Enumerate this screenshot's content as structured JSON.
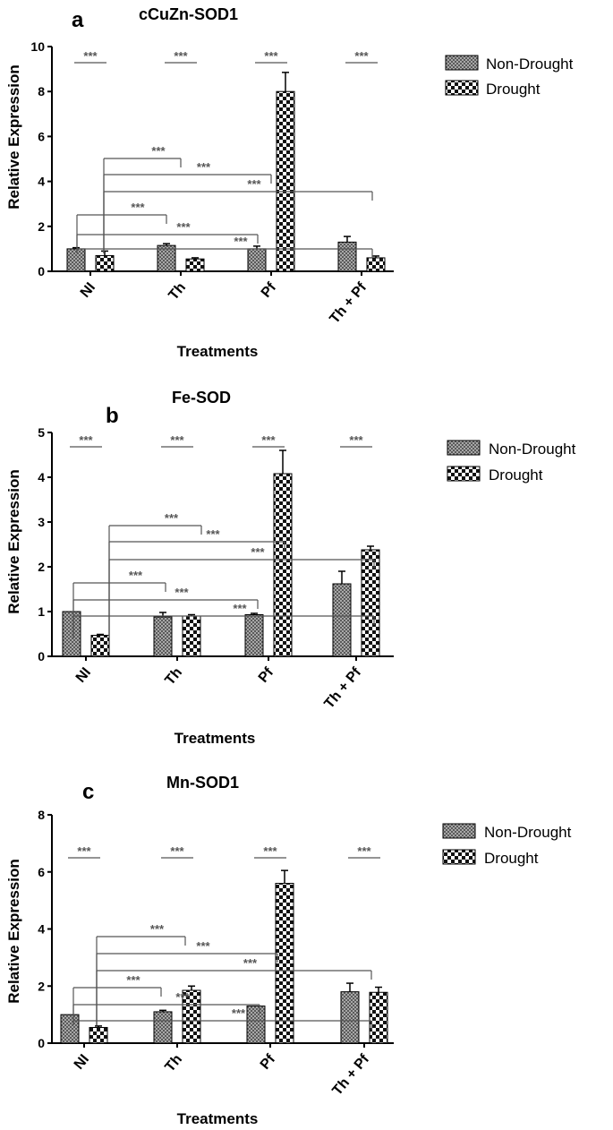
{
  "chart_data": [
    {
      "type": "bar",
      "panel": "a",
      "title": "cCuZn-SOD1",
      "xlabel": "Treatments",
      "ylabel": "Relative Expression",
      "categories": [
        "NI",
        "Th",
        "Pf",
        "Th + Pf"
      ],
      "ylim": [
        0,
        10
      ],
      "yticks": [
        "0",
        "2",
        "4",
        "6",
        "8",
        "10"
      ],
      "legend_position": "top-right",
      "series": [
        {
          "name": "Non-Drought",
          "values": [
            1.0,
            1.15,
            1.0,
            1.3
          ],
          "errors": [
            0.05,
            0.08,
            0.12,
            0.25
          ]
        },
        {
          "name": "Drought",
          "values": [
            0.7,
            0.55,
            8.0,
            0.6
          ],
          "errors": [
            0.2,
            0.05,
            0.85,
            0.08
          ]
        }
      ],
      "significance_label": "***",
      "pair_significance": [
        "***",
        "***",
        "***",
        "***"
      ],
      "comparison_lines": [
        "***",
        "***",
        "***",
        "***",
        "***",
        "***"
      ]
    },
    {
      "type": "bar",
      "panel": "b",
      "title": "Fe-SOD",
      "xlabel": "Treatments",
      "ylabel": "Relative Expression",
      "categories": [
        "NI",
        "Th",
        "Pf",
        "Th + Pf"
      ],
      "ylim": [
        0,
        5
      ],
      "yticks": [
        "0",
        "1",
        "2",
        "3",
        "4",
        "5"
      ],
      "legend_position": "top-right",
      "series": [
        {
          "name": "Non-Drought",
          "values": [
            1.0,
            0.88,
            0.93,
            1.62
          ],
          "errors": [
            0.0,
            0.1,
            0.03,
            0.28
          ]
        },
        {
          "name": "Drought",
          "values": [
            0.47,
            0.9,
            4.08,
            2.38
          ],
          "errors": [
            0.02,
            0.03,
            0.52,
            0.08
          ]
        }
      ],
      "significance_label": "***",
      "pair_significance": [
        "***",
        "***",
        "***",
        "***"
      ],
      "comparison_lines": [
        "***",
        "***",
        "***",
        "***",
        "***",
        "***"
      ]
    },
    {
      "type": "bar",
      "panel": "c",
      "title": "Mn-SOD1",
      "xlabel": "Treatments",
      "ylabel": "Relative Expression",
      "categories": [
        "NI",
        "Th",
        "Pf",
        "Th + Pf"
      ],
      "ylim": [
        0,
        8
      ],
      "yticks": [
        "0",
        "2",
        "4",
        "6",
        "8"
      ],
      "legend_position": "top-right",
      "series": [
        {
          "name": "Non-Drought",
          "values": [
            1.0,
            1.1,
            1.3,
            1.8
          ],
          "errors": [
            0.0,
            0.05,
            0.0,
            0.3
          ]
        },
        {
          "name": "Drought",
          "values": [
            0.55,
            1.85,
            5.6,
            1.78
          ],
          "errors": [
            0.05,
            0.15,
            0.45,
            0.18
          ]
        }
      ],
      "significance_label": "***",
      "pair_significance": [
        "***",
        "***",
        "***",
        "***"
      ],
      "comparison_lines": [
        "***",
        "***",
        "***",
        "***",
        "***",
        "***"
      ]
    }
  ],
  "colors": {
    "bar_stroke": "#000000",
    "sig_line": "#555555",
    "non_drought_fill_a": "#9a9a9a",
    "non_drought_fill_b": "#ffffff",
    "drought_fill_a": "#000000",
    "drought_fill_b": "#ffffff"
  }
}
